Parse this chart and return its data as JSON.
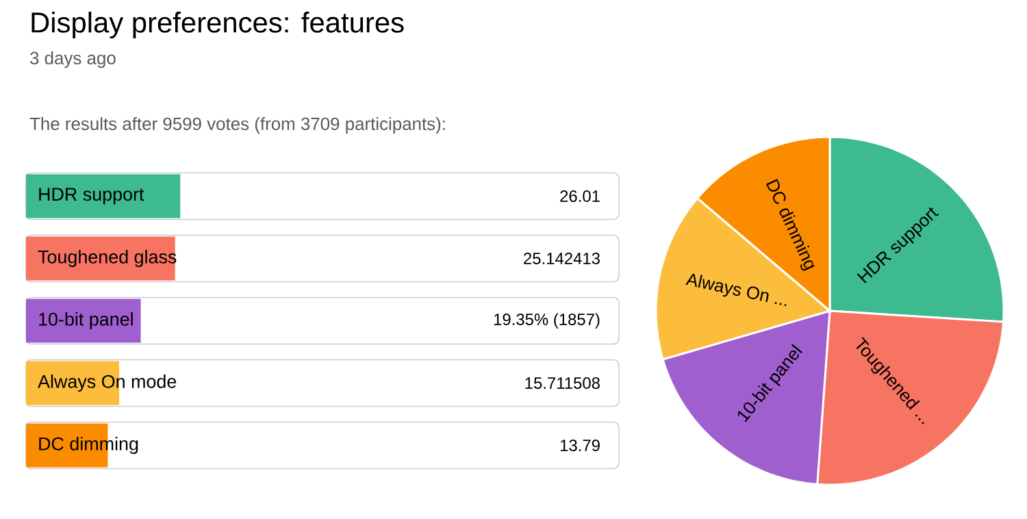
{
  "chart_data": [
    {
      "type": "bar",
      "orientation": "horizontal",
      "title": "Display preferences: features",
      "subtitle": "3 days ago",
      "annotations": [
        "The results after 9599 votes (from 3709 participants):"
      ],
      "categories": [
        "HDR support",
        "Toughened glass",
        "10-bit panel",
        "Always On mode",
        "DC dimming"
      ],
      "values": [
        26.01,
        25.142413,
        19.35,
        15.711508,
        13.79
      ],
      "value_labels": [
        "26.01",
        "25.142413",
        "19.35% (1857)",
        "15.711508",
        "13.79"
      ],
      "colors": [
        "#3dba8f",
        "#f87462",
        "#a05fcf",
        "#fbbd3b",
        "#fb8c00"
      ],
      "xlim": [
        0,
        100
      ],
      "tick_labels": false
    },
    {
      "type": "pie",
      "categories": [
        "HDR support",
        "Toughened ...",
        "10-bit panel",
        "Always On ...",
        "DC dimming"
      ],
      "values": [
        26.01,
        25.142413,
        19.35,
        15.711508,
        13.79
      ],
      "colors": [
        "#3dba8f",
        "#f87462",
        "#a05fcf",
        "#fbbd3b",
        "#fb8c00"
      ]
    }
  ]
}
